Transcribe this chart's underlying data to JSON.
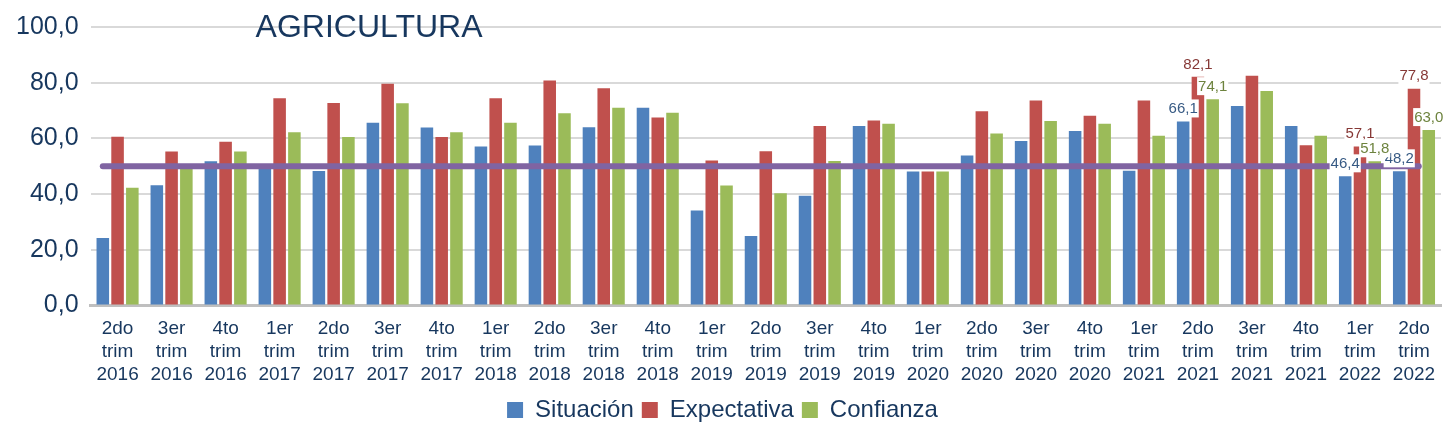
{
  "chart_data": {
    "type": "bar",
    "title": "AGRICULTURA",
    "categories": [
      "2do trim 2016",
      "3er trim 2016",
      "4to trim 2016",
      "1er trim 2017",
      "2do trim 2017",
      "3er trim 2017",
      "4to trim 2017",
      "1er trim 2018",
      "2do trim 2018",
      "3er trim 2018",
      "4to trim 2018",
      "1er trim 2019",
      "2do trim 2019",
      "3er trim 2019",
      "4to trim 2019",
      "1er trim 2020",
      "2do trim 2020",
      "3er trim 2020",
      "4to trim 2020",
      "1er trim 2021",
      "2do trim 2021",
      "3er trim 2021",
      "4to trim 2021",
      "1er trim 2022",
      "2do trim 2022"
    ],
    "series": [
      {
        "name": "Situación",
        "color": "#4f81bd",
        "values": [
          24.3,
          43.2,
          51.8,
          49.5,
          48.3,
          65.6,
          63.9,
          57.1,
          57.5,
          64,
          71,
          34.1,
          25,
          39.4,
          64.5,
          48.1,
          53.9,
          59.1,
          62.7,
          48.4,
          66.1,
          71.6,
          64.5,
          46.4,
          48.2
        ],
        "value_labels": [
          null,
          null,
          null,
          null,
          null,
          null,
          null,
          null,
          null,
          null,
          null,
          null,
          null,
          null,
          null,
          null,
          null,
          null,
          null,
          null,
          "66,1",
          null,
          null,
          "46,4",
          "48,2"
        ]
      },
      {
        "name": "Expectativa",
        "color": "#c0504d",
        "values": [
          60.6,
          55.3,
          58.8,
          74.4,
          72.7,
          79.6,
          60.5,
          74.4,
          80.8,
          78,
          67.5,
          52.1,
          55.4,
          64.5,
          66.4,
          48.1,
          69.8,
          73.6,
          68.1,
          73.6,
          82.1,
          82.5,
          57.6,
          57.1,
          77.8
        ],
        "value_labels": [
          null,
          null,
          null,
          null,
          null,
          null,
          null,
          null,
          null,
          null,
          null,
          null,
          null,
          null,
          null,
          null,
          null,
          null,
          null,
          null,
          "82,1",
          null,
          null,
          "57,1",
          "77,8"
        ]
      },
      {
        "name": "Confianza",
        "color": "#9bbb59",
        "values": [
          42.3,
          50,
          55.3,
          62.2,
          60.5,
          72.6,
          62.2,
          65.6,
          69,
          71,
          69.2,
          43.1,
          40.3,
          51.9,
          65.3,
          48.1,
          61.8,
          66.3,
          65.3,
          61,
          74.1,
          77,
          61,
          51.8,
          63.0
        ],
        "value_labels": [
          null,
          null,
          null,
          null,
          null,
          null,
          null,
          null,
          null,
          null,
          null,
          null,
          null,
          null,
          null,
          null,
          null,
          null,
          null,
          null,
          "74,1",
          null,
          null,
          "51,8",
          "63,0"
        ]
      }
    ],
    "ylim": [
      0,
      100
    ],
    "yticks": [
      {
        "value": 0,
        "label": "0,0"
      },
      {
        "value": 20,
        "label": "20,0"
      },
      {
        "value": 40,
        "label": "40,0"
      },
      {
        "value": 60,
        "label": "60,0"
      },
      {
        "value": 80,
        "label": "80,0"
      },
      {
        "value": 100,
        "label": "100,0"
      }
    ],
    "ref_lines": [
      {
        "axis": "y",
        "value": 50,
        "color": "#8064a2"
      }
    ],
    "grid": "y",
    "legend": "bottom"
  }
}
